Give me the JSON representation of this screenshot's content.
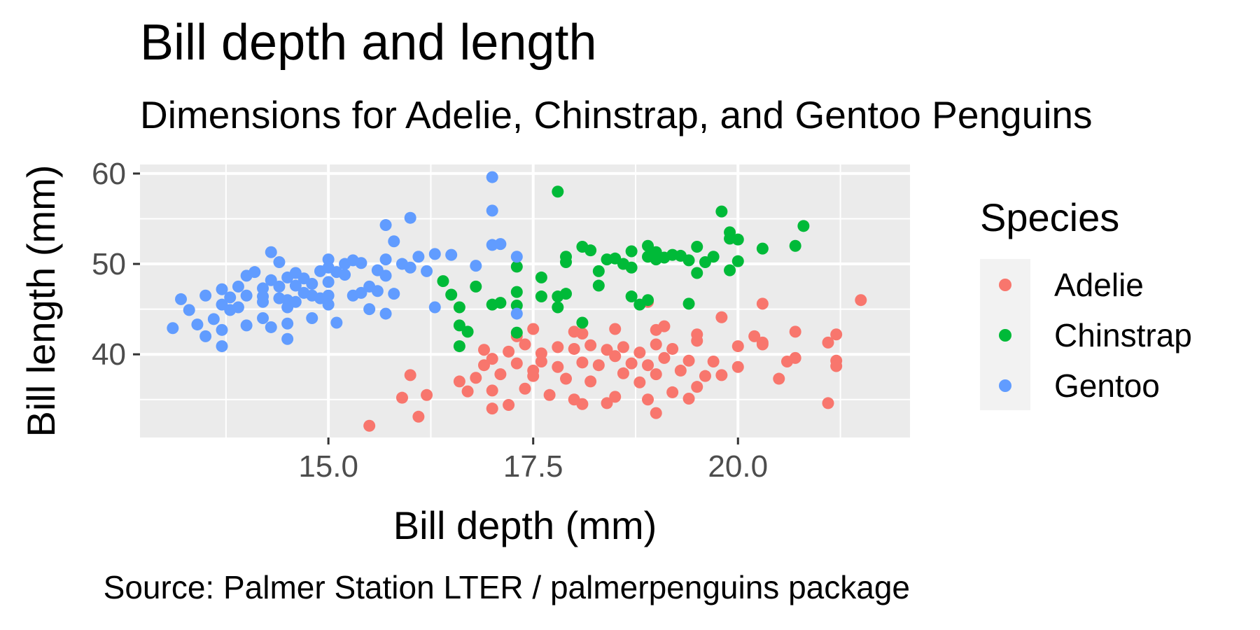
{
  "chart_data": {
    "type": "scatter",
    "title": "Bill depth and length",
    "subtitle": "Dimensions for Adelie, Chinstrap, and Gentoo Penguins",
    "caption": "Source: Palmer Station LTER / palmerpenguins package",
    "xlabel": "Bill depth (mm)",
    "ylabel": "Bill length (mm)",
    "xlim": [
      12.7,
      22.1
    ],
    "ylim": [
      30.8,
      61.0
    ],
    "x_ticks": [
      15.0,
      17.5,
      20.0
    ],
    "x_tick_labels": [
      "15.0",
      "17.5",
      "20.0"
    ],
    "y_ticks": [
      40,
      50,
      60
    ],
    "y_tick_labels": [
      "40",
      "50",
      "60"
    ],
    "grid": true,
    "legend_title": "Species",
    "legend_position": "right",
    "series": [
      {
        "name": "Adelie",
        "color": "#F8766D",
        "points": [
          [
            15.5,
            32.1
          ],
          [
            16.1,
            33.1
          ],
          [
            17.0,
            34.0
          ],
          [
            17.2,
            34.4
          ],
          [
            18.1,
            34.5
          ],
          [
            18.4,
            34.6
          ],
          [
            21.1,
            34.6
          ],
          [
            19.0,
            33.5
          ],
          [
            15.9,
            35.2
          ],
          [
            16.2,
            35.5
          ],
          [
            16.7,
            35.9
          ],
          [
            17.0,
            36.0
          ],
          [
            17.4,
            36.2
          ],
          [
            17.7,
            35.5
          ],
          [
            18.0,
            35.0
          ],
          [
            18.5,
            35.3
          ],
          [
            18.9,
            35.0
          ],
          [
            19.2,
            35.8
          ],
          [
            19.4,
            35.1
          ],
          [
            19.5,
            36.4
          ],
          [
            16.0,
            37.7
          ],
          [
            16.6,
            37.0
          ],
          [
            16.8,
            37.4
          ],
          [
            17.1,
            37.8
          ],
          [
            17.5,
            37.6
          ],
          [
            17.9,
            37.3
          ],
          [
            18.2,
            37.0
          ],
          [
            18.6,
            37.9
          ],
          [
            19.0,
            37.8
          ],
          [
            19.3,
            38.2
          ],
          [
            19.6,
            37.6
          ],
          [
            19.8,
            37.7
          ],
          [
            20.5,
            37.3
          ],
          [
            16.9,
            38.8
          ],
          [
            17.0,
            39.5
          ],
          [
            17.3,
            39.0
          ],
          [
            17.6,
            39.2
          ],
          [
            17.8,
            38.6
          ],
          [
            18.1,
            39.1
          ],
          [
            18.3,
            38.8
          ],
          [
            18.5,
            39.8
          ],
          [
            18.7,
            39.0
          ],
          [
            18.9,
            38.8
          ],
          [
            19.1,
            39.6
          ],
          [
            19.4,
            39.3
          ],
          [
            19.7,
            39.2
          ],
          [
            20.0,
            38.6
          ],
          [
            20.3,
            41.1
          ],
          [
            20.6,
            39.2
          ],
          [
            20.7,
            39.6
          ],
          [
            21.2,
            39.3
          ],
          [
            21.2,
            38.7
          ],
          [
            16.9,
            40.5
          ],
          [
            17.2,
            40.3
          ],
          [
            17.4,
            41.1
          ],
          [
            17.6,
            40.1
          ],
          [
            17.8,
            40.8
          ],
          [
            18.0,
            40.6
          ],
          [
            18.2,
            41.0
          ],
          [
            18.4,
            40.5
          ],
          [
            18.6,
            40.8
          ],
          [
            18.8,
            40.2
          ],
          [
            19.0,
            41.1
          ],
          [
            19.2,
            40.6
          ],
          [
            19.5,
            41.5
          ],
          [
            20.0,
            40.9
          ],
          [
            20.2,
            42.0
          ],
          [
            20.3,
            41.3
          ],
          [
            20.7,
            42.5
          ],
          [
            21.1,
            41.3
          ],
          [
            21.2,
            42.2
          ],
          [
            17.3,
            42.0
          ],
          [
            17.5,
            42.8
          ],
          [
            18.0,
            42.5
          ],
          [
            18.1,
            42.3
          ],
          [
            18.5,
            42.8
          ],
          [
            19.0,
            42.7
          ],
          [
            19.1,
            43.1
          ],
          [
            19.5,
            42.2
          ],
          [
            19.8,
            44.1
          ],
          [
            20.3,
            45.6
          ],
          [
            21.5,
            46.0
          ],
          [
            18.9,
            45.8
          ],
          [
            17.5,
            38.2
          ],
          [
            18.8,
            36.9
          ]
        ]
      },
      {
        "name": "Chinstrap",
        "color": "#00BA38",
        "points": [
          [
            16.4,
            48.1
          ],
          [
            16.5,
            46.6
          ],
          [
            16.6,
            45.2
          ],
          [
            16.6,
            43.2
          ],
          [
            16.6,
            40.9
          ],
          [
            16.7,
            42.5
          ],
          [
            16.8,
            47.5
          ],
          [
            17.0,
            45.5
          ],
          [
            17.1,
            45.7
          ],
          [
            17.3,
            42.4
          ],
          [
            17.3,
            45.4
          ],
          [
            17.3,
            46.9
          ],
          [
            17.3,
            49.7
          ],
          [
            17.6,
            48.5
          ],
          [
            17.6,
            46.4
          ],
          [
            17.8,
            46.4
          ],
          [
            17.8,
            45.2
          ],
          [
            17.8,
            58.0
          ],
          [
            17.9,
            50.2
          ],
          [
            17.9,
            50.8
          ],
          [
            17.9,
            46.7
          ],
          [
            18.1,
            51.9
          ],
          [
            18.1,
            43.5
          ],
          [
            18.2,
            51.5
          ],
          [
            18.3,
            49.2
          ],
          [
            18.3,
            47.6
          ],
          [
            18.4,
            50.5
          ],
          [
            18.5,
            50.6
          ],
          [
            18.6,
            50.0
          ],
          [
            18.7,
            51.4
          ],
          [
            18.7,
            49.6
          ],
          [
            18.7,
            46.4
          ],
          [
            18.8,
            45.5
          ],
          [
            18.9,
            50.8
          ],
          [
            18.9,
            52.0
          ],
          [
            18.9,
            46.0
          ],
          [
            19.0,
            51.3
          ],
          [
            19.0,
            50.5
          ],
          [
            19.1,
            50.7
          ],
          [
            19.2,
            51.0
          ],
          [
            19.3,
            50.9
          ],
          [
            19.4,
            50.4
          ],
          [
            19.4,
            45.6
          ],
          [
            19.5,
            49.0
          ],
          [
            19.5,
            51.9
          ],
          [
            19.6,
            50.2
          ],
          [
            19.7,
            50.8
          ],
          [
            19.8,
            55.8
          ],
          [
            19.9,
            53.5
          ],
          [
            19.9,
            52.8
          ],
          [
            19.9,
            49.3
          ],
          [
            20.0,
            52.7
          ],
          [
            20.0,
            50.3
          ],
          [
            20.3,
            51.7
          ],
          [
            20.7,
            52.0
          ],
          [
            20.8,
            54.2
          ]
        ]
      },
      {
        "name": "Gentoo",
        "color": "#619CFF",
        "points": [
          [
            13.1,
            42.9
          ],
          [
            13.2,
            46.1
          ],
          [
            13.3,
            44.9
          ],
          [
            13.4,
            43.3
          ],
          [
            13.5,
            46.5
          ],
          [
            13.5,
            42.0
          ],
          [
            13.6,
            43.9
          ],
          [
            13.7,
            47.2
          ],
          [
            13.7,
            45.5
          ],
          [
            13.7,
            42.7
          ],
          [
            13.7,
            40.9
          ],
          [
            13.8,
            46.3
          ],
          [
            13.8,
            44.9
          ],
          [
            13.9,
            47.5
          ],
          [
            13.9,
            45.2
          ],
          [
            14.0,
            48.7
          ],
          [
            14.0,
            46.5
          ],
          [
            14.0,
            43.2
          ],
          [
            14.1,
            49.1
          ],
          [
            14.2,
            47.3
          ],
          [
            14.2,
            45.8
          ],
          [
            14.2,
            44.0
          ],
          [
            14.3,
            51.3
          ],
          [
            14.3,
            48.2
          ],
          [
            14.3,
            43.0
          ],
          [
            14.4,
            50.2
          ],
          [
            14.4,
            47.5
          ],
          [
            14.4,
            46.2
          ],
          [
            14.5,
            48.5
          ],
          [
            14.5,
            46.0
          ],
          [
            14.5,
            45.2
          ],
          [
            14.5,
            43.4
          ],
          [
            14.6,
            49.0
          ],
          [
            14.6,
            47.6
          ],
          [
            14.6,
            45.8
          ],
          [
            14.7,
            48.4
          ],
          [
            14.7,
            46.8
          ],
          [
            14.8,
            46.5
          ],
          [
            14.8,
            44.0
          ],
          [
            14.9,
            49.2
          ],
          [
            14.9,
            46.2
          ],
          [
            15.0,
            50.5
          ],
          [
            15.0,
            49.6
          ],
          [
            15.0,
            48.0
          ],
          [
            15.0,
            46.5
          ],
          [
            15.0,
            45.5
          ],
          [
            15.1,
            49.1
          ],
          [
            15.2,
            50.0
          ],
          [
            15.2,
            48.8
          ],
          [
            15.3,
            50.4
          ],
          [
            15.3,
            46.5
          ],
          [
            15.4,
            50.1
          ],
          [
            15.5,
            47.5
          ],
          [
            15.5,
            45.0
          ],
          [
            15.6,
            49.3
          ],
          [
            15.6,
            47.0
          ],
          [
            15.7,
            54.3
          ],
          [
            15.7,
            50.5
          ],
          [
            15.7,
            48.7
          ],
          [
            15.8,
            52.5
          ],
          [
            15.8,
            46.7
          ],
          [
            15.9,
            50.0
          ],
          [
            16.0,
            55.1
          ],
          [
            16.0,
            49.6
          ],
          [
            16.1,
            50.8
          ],
          [
            16.2,
            49.2
          ],
          [
            16.3,
            51.1
          ],
          [
            16.3,
            45.2
          ],
          [
            16.5,
            51.0
          ],
          [
            16.8,
            49.8
          ],
          [
            17.0,
            59.6
          ],
          [
            17.0,
            55.9
          ],
          [
            17.0,
            52.1
          ],
          [
            17.1,
            52.2
          ],
          [
            17.3,
            50.8
          ],
          [
            17.3,
            44.5
          ],
          [
            14.5,
            41.7
          ],
          [
            15.1,
            43.5
          ],
          [
            15.7,
            44.5
          ],
          [
            14.8,
            47.8
          ],
          [
            15.4,
            46.8
          ],
          [
            14.2,
            46.4
          ]
        ]
      }
    ]
  }
}
